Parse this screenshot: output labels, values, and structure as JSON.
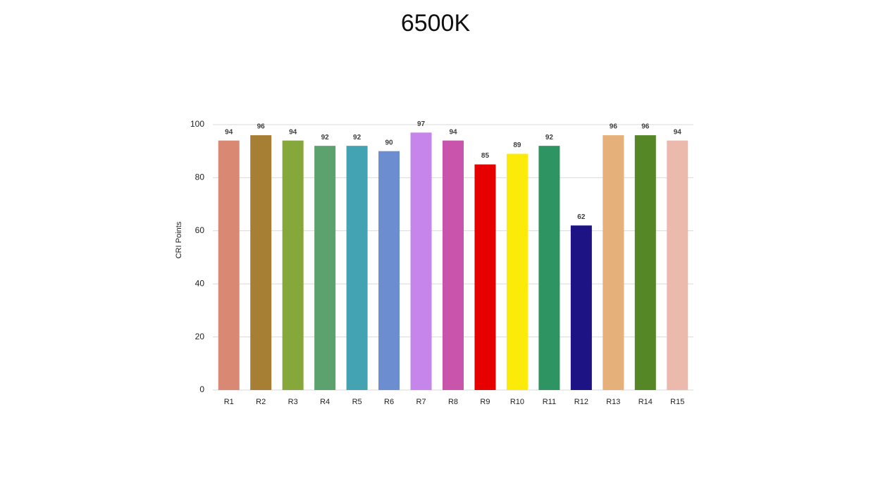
{
  "chart_data": {
    "type": "bar",
    "title": "6500K",
    "y_label": "CRI Points",
    "categories": [
      "R1",
      "R2",
      "R3",
      "R4",
      "R5",
      "R6",
      "R7",
      "R8",
      "R9",
      "R10",
      "R11",
      "R12",
      "R13",
      "R14",
      "R15"
    ],
    "values": [
      94,
      96,
      94,
      92,
      92,
      90,
      97,
      94,
      85,
      89,
      92,
      62,
      96,
      96,
      94
    ],
    "colors": [
      "#d98873",
      "#a67f35",
      "#86a73a",
      "#5ba26e",
      "#44a3b2",
      "#6c8ed1",
      "#c685ea",
      "#c854ab",
      "#e60000",
      "#fcea09",
      "#2e9461",
      "#1e1384",
      "#e6b07a",
      "#568726",
      "#ecbaad"
    ],
    "ylim": [
      0,
      100
    ],
    "yticks": [
      0,
      20,
      40,
      60,
      80,
      100
    ],
    "grid": true
  }
}
